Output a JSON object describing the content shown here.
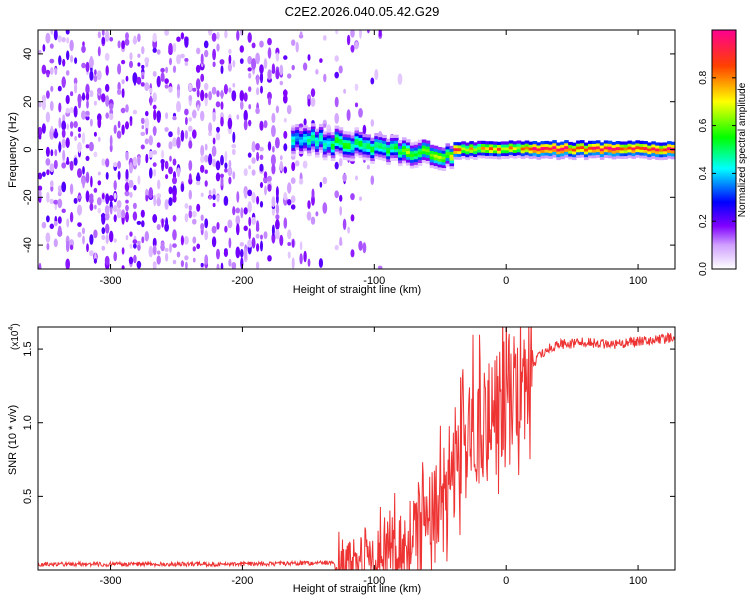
{
  "title": "C2E2.2026.040.05.42.G29",
  "chart_data": [
    {
      "type": "heatmap",
      "xlabel": "Height of straight line (km)",
      "ylabel": "Frequency (Hz)",
      "xlim": [
        -355,
        128
      ],
      "ylim": [
        -50,
        50
      ],
      "x_ticks": [
        -300,
        -200,
        -100,
        0,
        100
      ],
      "y_ticks": [
        -40,
        -20,
        0,
        20,
        40
      ],
      "colorbar": {
        "label": "Normalized spectral amplitude",
        "range": [
          0,
          1
        ],
        "ticks": [
          "0.0",
          "0.2",
          "0.4",
          "0.6",
          "0.8"
        ],
        "colormap": [
          "#ffffff",
          "#7a00ff",
          "#0000ff",
          "#00ffff",
          "#00ff00",
          "#ffff00",
          "#ff0000",
          "#ff00a0"
        ]
      },
      "description_segments": [
        {
          "x_range": [
            -355,
            -95
          ],
          "pattern": "scattered noise, amplitude 0.0-0.25"
        },
        {
          "x_range": [
            -160,
            -40
          ],
          "pattern": "concentrated band near 0 Hz wandering between +5 and -5 Hz"
        },
        {
          "x_range": [
            -40,
            128
          ],
          "pattern": "narrow band at 0 Hz, amplitude up to 1.0"
        }
      ]
    },
    {
      "type": "line",
      "xlabel": "Height of straight line (km)",
      "ylabel": "SNR (10 * v/v)",
      "exponent_label": "(x10",
      "exponent_power": "4",
      "xlim": [
        -355,
        128
      ],
      "ylim": [
        0,
        1.65
      ],
      "x_ticks": [
        -300,
        -200,
        -100,
        0,
        100
      ],
      "y_ticks": [
        "0.5",
        "1.0",
        "1.5"
      ],
      "line_color": "#ee3333",
      "series": [
        {
          "values_keypoints": [
            [
              -355,
              0.04
            ],
            [
              -300,
              0.04
            ],
            [
              -200,
              0.04
            ],
            [
              -130,
              0.05
            ],
            [
              -100,
              0.08
            ],
            [
              -80,
              0.15
            ],
            [
              -60,
              0.3
            ],
            [
              -50,
              0.45
            ],
            [
              -40,
              0.65
            ],
            [
              -30,
              0.85
            ],
            [
              -20,
              1.0
            ],
            [
              -10,
              1.1
            ],
            [
              0,
              1.2
            ],
            [
              10,
              1.3
            ],
            [
              20,
              1.4
            ],
            [
              30,
              1.5
            ],
            [
              40,
              1.53
            ],
            [
              60,
              1.55
            ],
            [
              80,
              1.53
            ],
            [
              100,
              1.55
            ],
            [
              128,
              1.58
            ]
          ]
        }
      ]
    }
  ]
}
